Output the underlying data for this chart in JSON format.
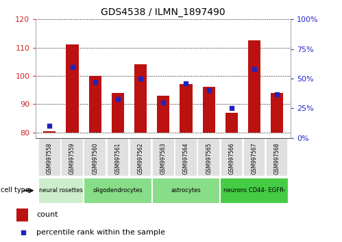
{
  "title": "GDS4538 / ILMN_1897490",
  "samples": [
    "GSM997558",
    "GSM997559",
    "GSM997560",
    "GSM997561",
    "GSM997562",
    "GSM997563",
    "GSM997564",
    "GSM997565",
    "GSM997566",
    "GSM997567",
    "GSM997568"
  ],
  "counts": [
    80.3,
    111.2,
    100.1,
    94.0,
    104.2,
    93.0,
    97.0,
    96.0,
    87.0,
    112.5,
    94.0
  ],
  "percentile": [
    10,
    60,
    47,
    33,
    50,
    30,
    46,
    40,
    25,
    58,
    37
  ],
  "ylim_left": [
    78,
    120
  ],
  "ylim_right": [
    0,
    100
  ],
  "yticks_left": [
    80,
    90,
    100,
    110,
    120
  ],
  "yticks_right": [
    0,
    25,
    50,
    75,
    100
  ],
  "bar_color": "#bb1111",
  "dot_color": "#2222bb",
  "bar_bottom": 80,
  "cell_types": [
    {
      "label": "neural rosettes",
      "start": 0,
      "end": 2,
      "color": "#cceecc"
    },
    {
      "label": "oligodendrocytes",
      "start": 2,
      "end": 5,
      "color": "#88dd88"
    },
    {
      "label": "astrocytes",
      "start": 5,
      "end": 8,
      "color": "#88dd88"
    },
    {
      "label": "neurons CD44- EGFR-",
      "start": 8,
      "end": 11,
      "color": "#44cc44"
    }
  ],
  "legend_count_label": "count",
  "legend_pct_label": "percentile rank within the sample",
  "left_tick_color": "#cc2222",
  "right_tick_color": "#2222cc"
}
